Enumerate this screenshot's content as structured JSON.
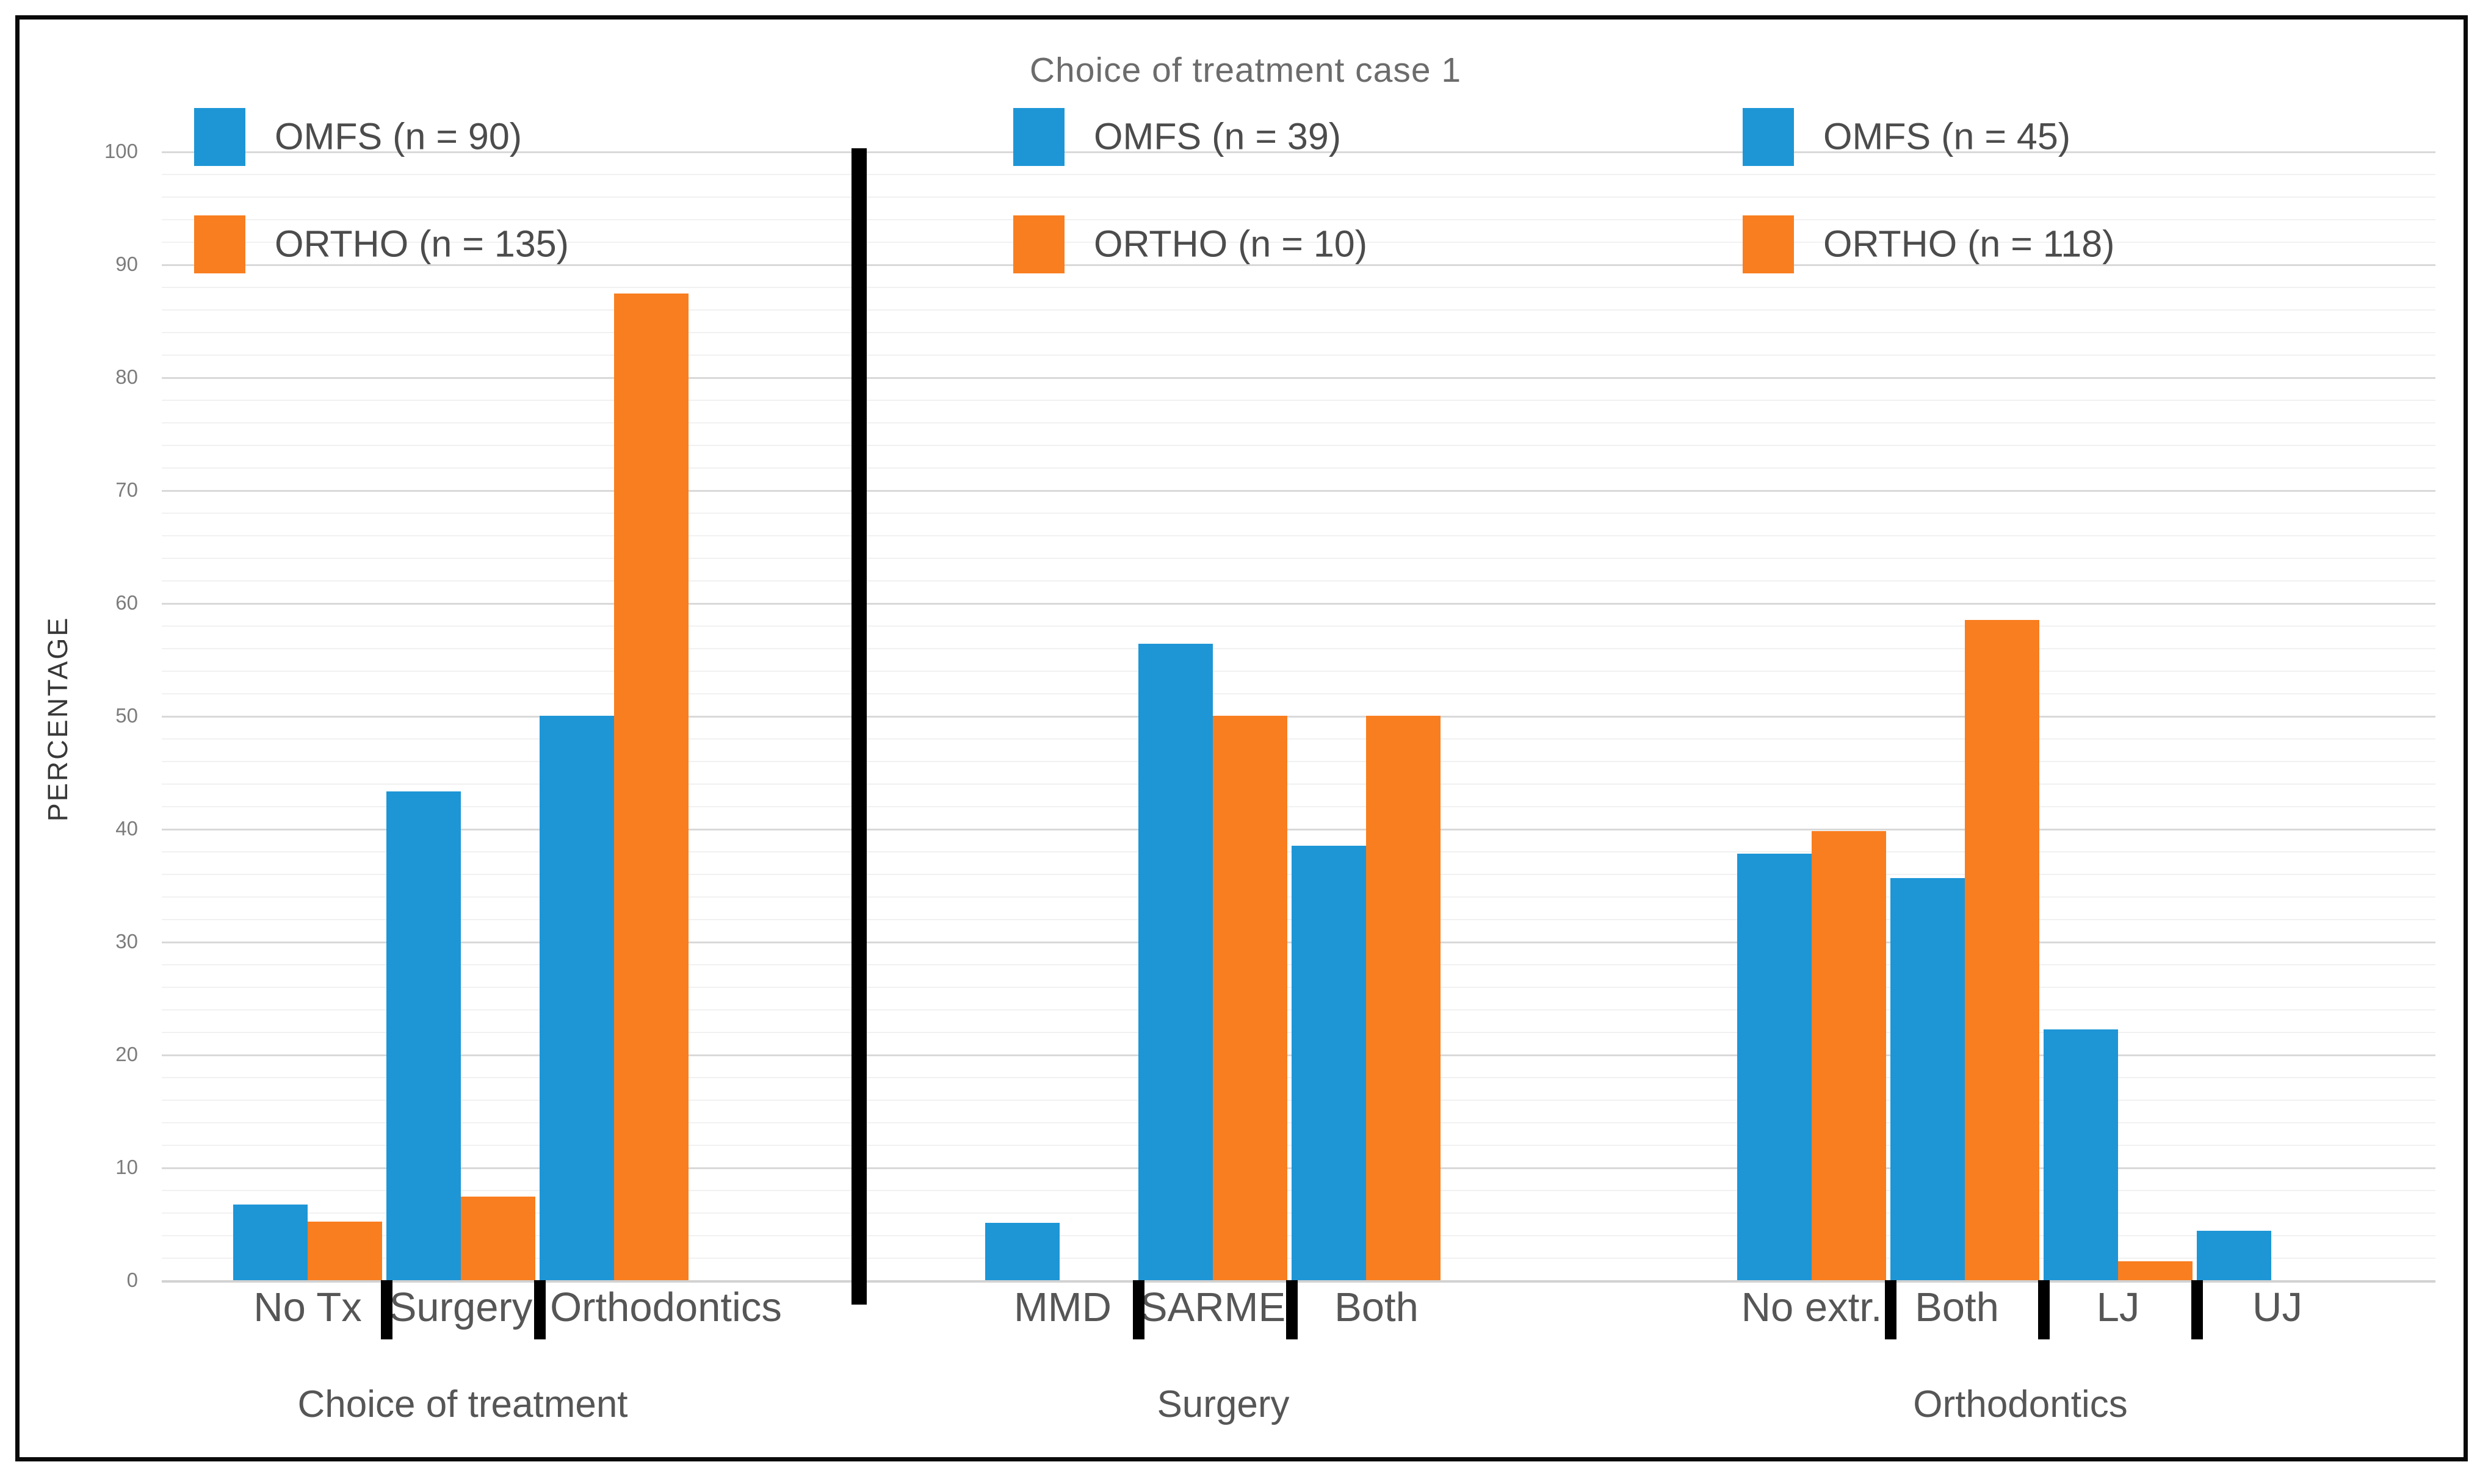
{
  "title": "Choice of treatment case 1",
  "y_axis": {
    "title": "PERCENTAGE",
    "tick_labels": [
      "0",
      "10",
      "20",
      "30",
      "40",
      "50",
      "60",
      "70",
      "80",
      "90",
      "100"
    ]
  },
  "colors": {
    "omfs": "#1e96d6",
    "ortho": "#f97e20",
    "grid_major": "#d9d9d9",
    "grid_minor": "#f1f1f1",
    "separator": "#000000",
    "text_gray": "#565656"
  },
  "legends": [
    {
      "entries": [
        {
          "series": "omfs",
          "label": "OMFS (n = 90)"
        },
        {
          "series": "ortho",
          "label": "ORTHO (n = 135)"
        }
      ]
    },
    {
      "entries": [
        {
          "series": "omfs",
          "label": "OMFS (n = 39)"
        },
        {
          "series": "ortho",
          "label": "ORTHO (n = 10)"
        }
      ]
    },
    {
      "entries": [
        {
          "series": "omfs",
          "label": "OMFS (n = 45)"
        },
        {
          "series": "ortho",
          "label": "ORTHO (n = 118)"
        }
      ]
    }
  ],
  "chart_data": {
    "type": "bar",
    "title": "Choice of treatment case 1",
    "ylabel": "PERCENTAGE",
    "ylim": [
      0,
      100
    ],
    "grid": "major gridlines every 10, faint minor gridlines every 2",
    "legend_position": "top, one legend per panel",
    "panels": [
      {
        "caption": "Choice of treatment",
        "categories": [
          "No Tx",
          "Surgery",
          "Orthodontics"
        ],
        "series": [
          {
            "name": "OMFS (n = 90)",
            "color": "#1e96d6",
            "values": [
              6.7,
              43.3,
              50.0
            ]
          },
          {
            "name": "ORTHO (n = 135)",
            "color": "#f97e20",
            "values": [
              5.2,
              7.4,
              87.4
            ]
          }
        ]
      },
      {
        "caption": "Surgery",
        "categories": [
          "MMD",
          "SARME",
          "Both"
        ],
        "series": [
          {
            "name": "OMFS (n = 39)",
            "color": "#1e96d6",
            "values": [
              5.1,
              56.4,
              38.5
            ]
          },
          {
            "name": "ORTHO (n = 10)",
            "color": "#f97e20",
            "values": [
              0,
              50.0,
              50.0
            ]
          }
        ]
      },
      {
        "caption": "Orthodontics",
        "categories": [
          "No extr.",
          "Both",
          "LJ",
          "UJ"
        ],
        "series": [
          {
            "name": "OMFS (n = 45)",
            "color": "#1e96d6",
            "values": [
              37.8,
              35.6,
              22.2,
              4.4
            ]
          },
          {
            "name": "ORTHO (n = 118)",
            "color": "#f97e20",
            "values": [
              39.8,
              58.5,
              1.7,
              0
            ]
          }
        ]
      }
    ]
  }
}
